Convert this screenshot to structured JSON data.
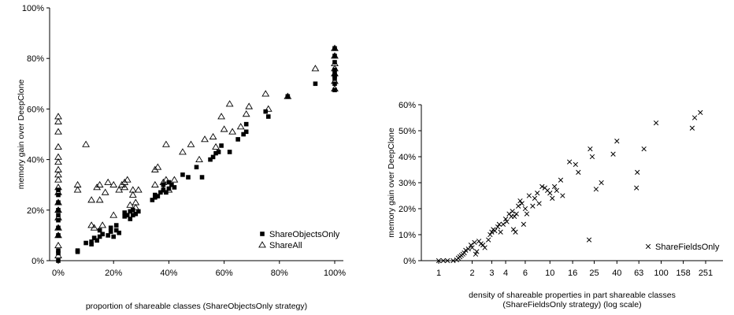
{
  "chart_data": [
    {
      "type": "scatter",
      "xlabel": "proportion of shareable classes (ShareObjectsOnly strategy)",
      "ylabel": "memory gain over DeepClone",
      "xlim": [
        0,
        100
      ],
      "ylim": [
        0,
        100
      ],
      "x_scale": "linear",
      "x_ticks": [
        0,
        20,
        40,
        60,
        80,
        100
      ],
      "x_tick_labels": [
        "0%",
        "20%",
        "40%",
        "60%",
        "80%",
        "100%"
      ],
      "y_ticks": [
        0,
        20,
        40,
        60,
        80,
        100
      ],
      "y_tick_labels": [
        "0%",
        "20%",
        "40%",
        "60%",
        "80%",
        "100%"
      ],
      "grid": false,
      "legend_position": "bottom-right",
      "series": [
        {
          "name": "ShareObjectsOnly",
          "marker": "filled-square",
          "color": "#000000",
          "points": [
            [
              0,
              0
            ],
            [
              0,
              3
            ],
            [
              0,
              4
            ],
            [
              0,
              10
            ],
            [
              0,
              13
            ],
            [
              0,
              16
            ],
            [
              0,
              18
            ],
            [
              0,
              20
            ],
            [
              0,
              23
            ],
            [
              0,
              26
            ],
            [
              0,
              28
            ],
            [
              7,
              4
            ],
            [
              7,
              3.5
            ],
            [
              10,
              7
            ],
            [
              12,
              6.5
            ],
            [
              12,
              7.5
            ],
            [
              13,
              9
            ],
            [
              14,
              8
            ],
            [
              15,
              9.5
            ],
            [
              15,
              12
            ],
            [
              16,
              10.5
            ],
            [
              18,
              10
            ],
            [
              19,
              11.5
            ],
            [
              19,
              13
            ],
            [
              20,
              9.5
            ],
            [
              21,
              12
            ],
            [
              21,
              14
            ],
            [
              22,
              11
            ],
            [
              24,
              17.5
            ],
            [
              24,
              19
            ],
            [
              25,
              18
            ],
            [
              26,
              16.5
            ],
            [
              26,
              19.5
            ],
            [
              27,
              18
            ],
            [
              27,
              20
            ],
            [
              28,
              18.5
            ],
            [
              29,
              19.5
            ],
            [
              34,
              24
            ],
            [
              35,
              25
            ],
            [
              35,
              26
            ],
            [
              36,
              25.5
            ],
            [
              37,
              27
            ],
            [
              38,
              28
            ],
            [
              38,
              30
            ],
            [
              39,
              27
            ],
            [
              40,
              28.5
            ],
            [
              40,
              31
            ],
            [
              41,
              30
            ],
            [
              42,
              29
            ],
            [
              45,
              34
            ],
            [
              47,
              33
            ],
            [
              50,
              37
            ],
            [
              52,
              33
            ],
            [
              55,
              40
            ],
            [
              56,
              41
            ],
            [
              57,
              42.5
            ],
            [
              58,
              43
            ],
            [
              59,
              45.5
            ],
            [
              62,
              43
            ],
            [
              65,
              48
            ],
            [
              67,
              50
            ],
            [
              68,
              51
            ],
            [
              68,
              54
            ],
            [
              75,
              59
            ],
            [
              76,
              57
            ],
            [
              83,
              65
            ],
            [
              93,
              70
            ],
            [
              100,
              67.5
            ],
            [
              100,
              70
            ],
            [
              100,
              72
            ],
            [
              100,
              73
            ],
            [
              100,
              74
            ],
            [
              100,
              75.5
            ],
            [
              100,
              78.5
            ],
            [
              100,
              81
            ],
            [
              100,
              84
            ]
          ]
        },
        {
          "name": "ShareAll",
          "marker": "hollow-triangle",
          "color": "#000000",
          "points": [
            [
              0,
              2
            ],
            [
              0,
              6
            ],
            [
              0,
              10
            ],
            [
              0,
              13
            ],
            [
              0,
              17
            ],
            [
              0,
              20
            ],
            [
              0,
              23
            ],
            [
              0,
              27
            ],
            [
              0,
              29
            ],
            [
              0,
              32
            ],
            [
              0,
              34
            ],
            [
              0,
              36
            ],
            [
              0,
              39
            ],
            [
              0,
              41
            ],
            [
              0,
              45
            ],
            [
              0,
              51
            ],
            [
              0,
              55
            ],
            [
              0,
              57
            ],
            [
              7,
              28
            ],
            [
              7,
              30
            ],
            [
              10,
              46
            ],
            [
              12,
              14
            ],
            [
              12,
              24
            ],
            [
              13,
              13
            ],
            [
              14,
              29
            ],
            [
              15,
              30
            ],
            [
              15,
              24
            ],
            [
              16,
              14
            ],
            [
              17,
              27
            ],
            [
              18,
              31
            ],
            [
              20,
              18
            ],
            [
              20,
              30
            ],
            [
              22,
              28
            ],
            [
              23,
              30
            ],
            [
              24,
              31
            ],
            [
              24,
              29
            ],
            [
              25,
              32
            ],
            [
              26,
              22
            ],
            [
              27,
              28
            ],
            [
              27,
              26
            ],
            [
              28,
              21
            ],
            [
              28,
              23
            ],
            [
              29,
              28
            ],
            [
              35,
              30
            ],
            [
              35,
              36
            ],
            [
              36,
              37
            ],
            [
              38,
              28
            ],
            [
              38,
              31
            ],
            [
              39,
              32
            ],
            [
              39,
              46
            ],
            [
              40,
              28
            ],
            [
              42,
              32
            ],
            [
              45,
              43
            ],
            [
              48,
              46
            ],
            [
              51,
              40
            ],
            [
              53,
              48
            ],
            [
              56,
              49
            ],
            [
              57,
              45
            ],
            [
              59,
              57
            ],
            [
              60,
              52
            ],
            [
              62,
              62
            ],
            [
              63,
              51
            ],
            [
              66,
              53
            ],
            [
              68,
              58
            ],
            [
              69,
              61
            ],
            [
              75,
              66
            ],
            [
              76,
              60
            ],
            [
              83,
              65
            ],
            [
              93,
              76
            ],
            [
              100,
              68
            ],
            [
              100,
              71
            ],
            [
              100,
              74
            ],
            [
              100,
              76
            ],
            [
              100,
              78
            ],
            [
              100,
              81
            ],
            [
              100,
              84
            ]
          ]
        }
      ]
    },
    {
      "type": "scatter",
      "xlabel": "density of shareable properties in part shareable classes",
      "xlabel_line2": "(ShareFieldsOnly strategy)  (log scale)",
      "ylabel": "memory gain over DeepClone",
      "xlim": [
        1,
        251
      ],
      "ylim": [
        0,
        60
      ],
      "x_scale": "log",
      "x_ticks": [
        1,
        2,
        3,
        4,
        6,
        10,
        16,
        25,
        40,
        63,
        100,
        158,
        251
      ],
      "x_tick_labels": [
        "1",
        "2",
        "3",
        "4",
        "6",
        "10",
        "16",
        "25",
        "40",
        "63",
        "100",
        "158",
        "251"
      ],
      "y_ticks": [
        0,
        10,
        20,
        30,
        40,
        50,
        60
      ],
      "y_tick_labels": [
        "0%",
        "10%",
        "20%",
        "30%",
        "40%",
        "50%",
        "60%"
      ],
      "grid": false,
      "legend_position": "bottom-right",
      "series": [
        {
          "name": "ShareFieldsOnly",
          "marker": "x",
          "color": "#000000",
          "points": [
            [
              1.0,
              0
            ],
            [
              1.1,
              0
            ],
            [
              1.2,
              0
            ],
            [
              1.35,
              0
            ],
            [
              1.45,
              0.3
            ],
            [
              1.5,
              1
            ],
            [
              1.55,
              1.5
            ],
            [
              1.6,
              2
            ],
            [
              1.65,
              2.5
            ],
            [
              1.7,
              3
            ],
            [
              1.75,
              4
            ],
            [
              1.85,
              4.5
            ],
            [
              1.95,
              6
            ],
            [
              2.0,
              5
            ],
            [
              2.1,
              7
            ],
            [
              2.15,
              2.5
            ],
            [
              2.2,
              3.5
            ],
            [
              2.3,
              7.5
            ],
            [
              2.4,
              6.5
            ],
            [
              2.5,
              6
            ],
            [
              2.6,
              5
            ],
            [
              2.8,
              8
            ],
            [
              2.9,
              10
            ],
            [
              3.0,
              11
            ],
            [
              3.1,
              12
            ],
            [
              3.2,
              11.5
            ],
            [
              3.4,
              13
            ],
            [
              3.5,
              14
            ],
            [
              3.6,
              11
            ],
            [
              3.8,
              14
            ],
            [
              4.0,
              16
            ],
            [
              4.1,
              15
            ],
            [
              4.3,
              18
            ],
            [
              4.5,
              17
            ],
            [
              4.6,
              19
            ],
            [
              4.7,
              12
            ],
            [
              4.8,
              17
            ],
            [
              4.9,
              11
            ],
            [
              5.0,
              18
            ],
            [
              5.2,
              21
            ],
            [
              5.4,
              23
            ],
            [
              5.6,
              22
            ],
            [
              5.8,
              14
            ],
            [
              6.0,
              20
            ],
            [
              6.2,
              18
            ],
            [
              6.5,
              25
            ],
            [
              7.0,
              21
            ],
            [
              7.3,
              24
            ],
            [
              7.7,
              26
            ],
            [
              8.0,
              22
            ],
            [
              8.5,
              28.5
            ],
            [
              9.0,
              28
            ],
            [
              9.5,
              27
            ],
            [
              10.0,
              26
            ],
            [
              10.5,
              24
            ],
            [
              11.0,
              28.5
            ],
            [
              11.5,
              27
            ],
            [
              12.5,
              31
            ],
            [
              13.0,
              25
            ],
            [
              15.0,
              38
            ],
            [
              17.0,
              37
            ],
            [
              18.0,
              34
            ],
            [
              22.5,
              8
            ],
            [
              23.0,
              43
            ],
            [
              24.0,
              40
            ],
            [
              26.0,
              27.5
            ],
            [
              29.0,
              30
            ],
            [
              37.0,
              41
            ],
            [
              40.0,
              46
            ],
            [
              60.0,
              28
            ],
            [
              61.0,
              34
            ],
            [
              70.0,
              43
            ],
            [
              90.0,
              53
            ],
            [
              190.0,
              51
            ],
            [
              200.0,
              55
            ],
            [
              225.0,
              57
            ]
          ]
        }
      ]
    }
  ]
}
